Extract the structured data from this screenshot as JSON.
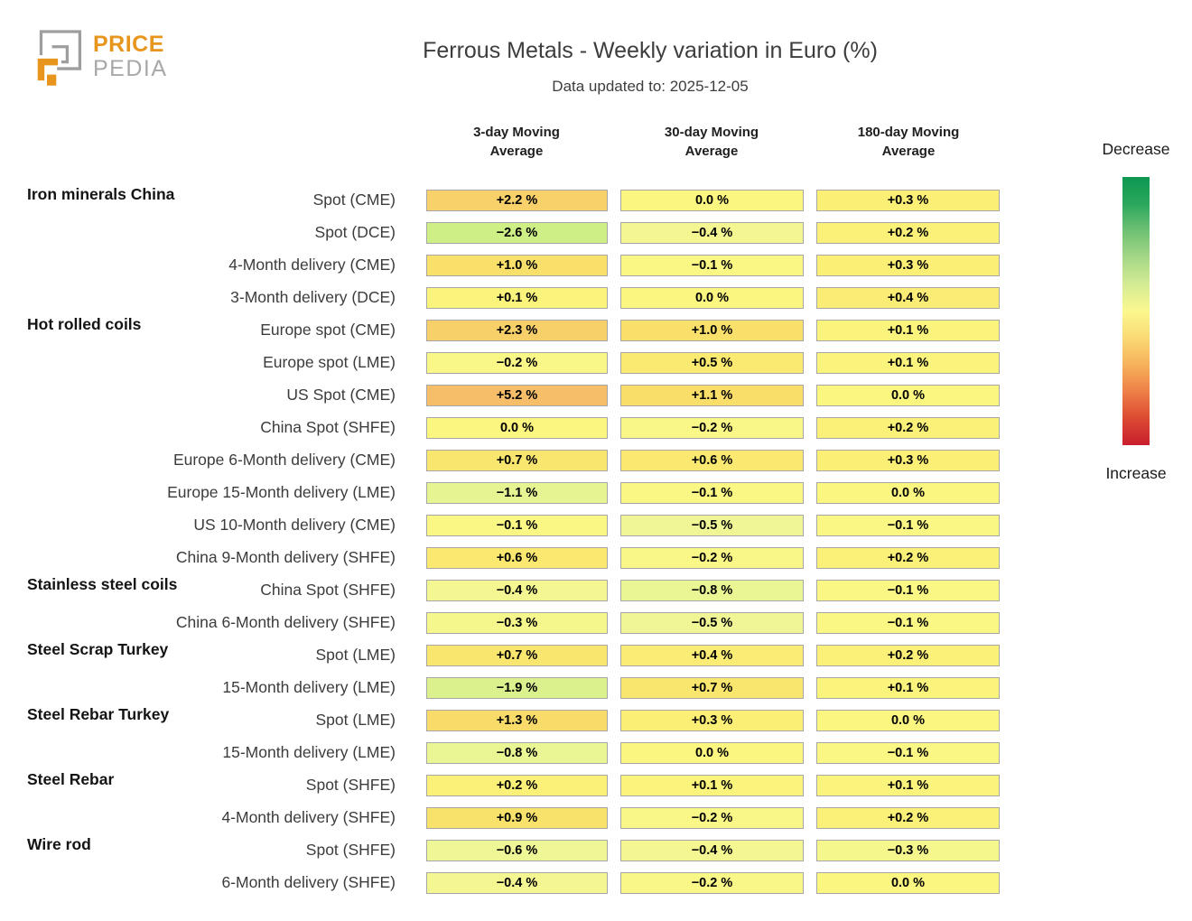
{
  "logo": {
    "line1": "PRICE",
    "line2": "PEDIA",
    "orange": "#e8951d",
    "gray": "#9e9e9e"
  },
  "header": {
    "title": "Ferrous Metals - Weekly variation in Euro (%)",
    "subtitle": "Data updated to: 2025-12-05"
  },
  "legend": {
    "decrease_label": "Decrease",
    "increase_label": "Increase"
  },
  "chart_data": {
    "type": "heatmap",
    "title": "Ferrous Metals - Weekly variation in Euro (%)",
    "subtitle": "Data updated to: 2025-12-05",
    "columns": [
      "3-day Moving Average",
      "30-day Moving Average",
      "180-day Moving Average"
    ],
    "rows": [
      {
        "group": "Iron minerals China",
        "label": "Spot (CME)",
        "display": [
          "+2.2 %",
          "0.0 %",
          "+0.3 %"
        ],
        "values": [
          2.2,
          0.0,
          0.3
        ]
      },
      {
        "group": "",
        "label": "Spot (DCE)",
        "display": [
          "−2.6 %",
          "−0.4 %",
          "+0.2 %"
        ],
        "values": [
          -2.6,
          -0.4,
          0.2
        ]
      },
      {
        "group": "",
        "label": "4-Month delivery (CME)",
        "display": [
          "+1.0 %",
          "−0.1 %",
          "+0.3 %"
        ],
        "values": [
          1.0,
          -0.1,
          0.3
        ]
      },
      {
        "group": "",
        "label": "3-Month delivery (DCE)",
        "display": [
          "+0.1 %",
          "0.0 %",
          "+0.4 %"
        ],
        "values": [
          0.1,
          0.0,
          0.4
        ]
      },
      {
        "group": "Hot rolled coils",
        "label": "Europe spot (CME)",
        "display": [
          "+2.3 %",
          "+1.0 %",
          "+0.1 %"
        ],
        "values": [
          2.3,
          1.0,
          0.1
        ]
      },
      {
        "group": "",
        "label": "Europe spot (LME)",
        "display": [
          "−0.2 %",
          "+0.5 %",
          "+0.1 %"
        ],
        "values": [
          -0.2,
          0.5,
          0.1
        ]
      },
      {
        "group": "",
        "label": "US Spot (CME)",
        "display": [
          "+5.2 %",
          "+1.1 %",
          "0.0 %"
        ],
        "values": [
          5.2,
          1.1,
          0.0
        ]
      },
      {
        "group": "",
        "label": "China Spot (SHFE)",
        "display": [
          "0.0 %",
          "−0.2 %",
          "+0.2 %"
        ],
        "values": [
          0.0,
          -0.2,
          0.2
        ]
      },
      {
        "group": "",
        "label": "Europe 6-Month delivery (CME)",
        "display": [
          "+0.7 %",
          "+0.6 %",
          "+0.3 %"
        ],
        "values": [
          0.7,
          0.6,
          0.3
        ]
      },
      {
        "group": "",
        "label": "Europe 15-Month delivery (LME)",
        "display": [
          "−1.1 %",
          "−0.1 %",
          "0.0 %"
        ],
        "values": [
          -1.1,
          -0.1,
          0.0
        ]
      },
      {
        "group": "",
        "label": "US 10-Month delivery (CME)",
        "display": [
          "−0.1 %",
          "−0.5 %",
          "−0.1 %"
        ],
        "values": [
          -0.1,
          -0.5,
          -0.1
        ]
      },
      {
        "group": "",
        "label": "China 9-Month delivery (SHFE)",
        "display": [
          "+0.6 %",
          "−0.2 %",
          "+0.2 %"
        ],
        "values": [
          0.6,
          -0.2,
          0.2
        ]
      },
      {
        "group": "Stainless steel coils",
        "label": "China Spot (SHFE)",
        "display": [
          "−0.4 %",
          "−0.8 %",
          "−0.1 %"
        ],
        "values": [
          -0.4,
          -0.8,
          -0.1
        ]
      },
      {
        "group": "",
        "label": "China 6-Month delivery (SHFE)",
        "display": [
          "−0.3 %",
          "−0.5 %",
          "−0.1 %"
        ],
        "values": [
          -0.3,
          -0.5,
          -0.1
        ]
      },
      {
        "group": "Steel Scrap Turkey",
        "label": "Spot (LME)",
        "display": [
          "+0.7 %",
          "+0.4 %",
          "+0.2 %"
        ],
        "values": [
          0.7,
          0.4,
          0.2
        ]
      },
      {
        "group": "",
        "label": "15-Month delivery (LME)",
        "display": [
          "−1.9 %",
          "+0.7 %",
          "+0.1 %"
        ],
        "values": [
          -1.9,
          0.7,
          0.1
        ]
      },
      {
        "group": "Steel Rebar Turkey",
        "label": "Spot (LME)",
        "display": [
          "+1.3 %",
          "+0.3 %",
          "0.0 %"
        ],
        "values": [
          1.3,
          0.3,
          0.0
        ]
      },
      {
        "group": "",
        "label": "15-Month delivery (LME)",
        "display": [
          "−0.8 %",
          "0.0 %",
          "−0.1 %"
        ],
        "values": [
          -0.8,
          0.0,
          -0.1
        ]
      },
      {
        "group": "Steel Rebar",
        "label": "Spot (SHFE)",
        "display": [
          "+0.2 %",
          "+0.1 %",
          "+0.1 %"
        ],
        "values": [
          0.2,
          0.1,
          0.1
        ]
      },
      {
        "group": "",
        "label": "4-Month delivery (SHFE)",
        "display": [
          "+0.9 %",
          "−0.2 %",
          "+0.2 %"
        ],
        "values": [
          0.9,
          -0.2,
          0.2
        ]
      },
      {
        "group": "Wire rod",
        "label": "Spot (SHFE)",
        "display": [
          "−0.6 %",
          "−0.4 %",
          "−0.3 %"
        ],
        "values": [
          -0.6,
          -0.4,
          -0.3
        ]
      },
      {
        "group": "",
        "label": "6-Month delivery (SHFE)",
        "display": [
          "−0.4 %",
          "−0.2 %",
          "0.0 %"
        ],
        "values": [
          -0.4,
          -0.2,
          0.0
        ]
      }
    ],
    "legend_position": "right",
    "colorbar": {
      "top_label": "Decrease",
      "bottom_label": "Increase",
      "gradient_top_to_bottom": [
        "#0c9751",
        "#2aa75d",
        "#6fc173",
        "#a5d787",
        "#d4eb95",
        "#fbf88f",
        "#f9d973",
        "#f6b25b",
        "#ee7f47",
        "#dc4a32",
        "#c81e2e"
      ]
    },
    "colormap": [
      [
        -3.0,
        "#c6eb81"
      ],
      [
        -2.6,
        "#ceee86"
      ],
      [
        -1.9,
        "#dbf18d"
      ],
      [
        -1.1,
        "#e6f492"
      ],
      [
        -0.8,
        "#eaf594"
      ],
      [
        -0.5,
        "#f0f696"
      ],
      [
        -0.2,
        "#f8f788"
      ],
      [
        0.0,
        "#fbf680"
      ],
      [
        0.2,
        "#fbf178"
      ],
      [
        0.5,
        "#faea72"
      ],
      [
        0.8,
        "#f9e46d"
      ],
      [
        1.1,
        "#f9de6a"
      ],
      [
        1.5,
        "#f8d769"
      ],
      [
        2.3,
        "#f8d06a"
      ],
      [
        5.2,
        "#f6be68"
      ]
    ]
  }
}
